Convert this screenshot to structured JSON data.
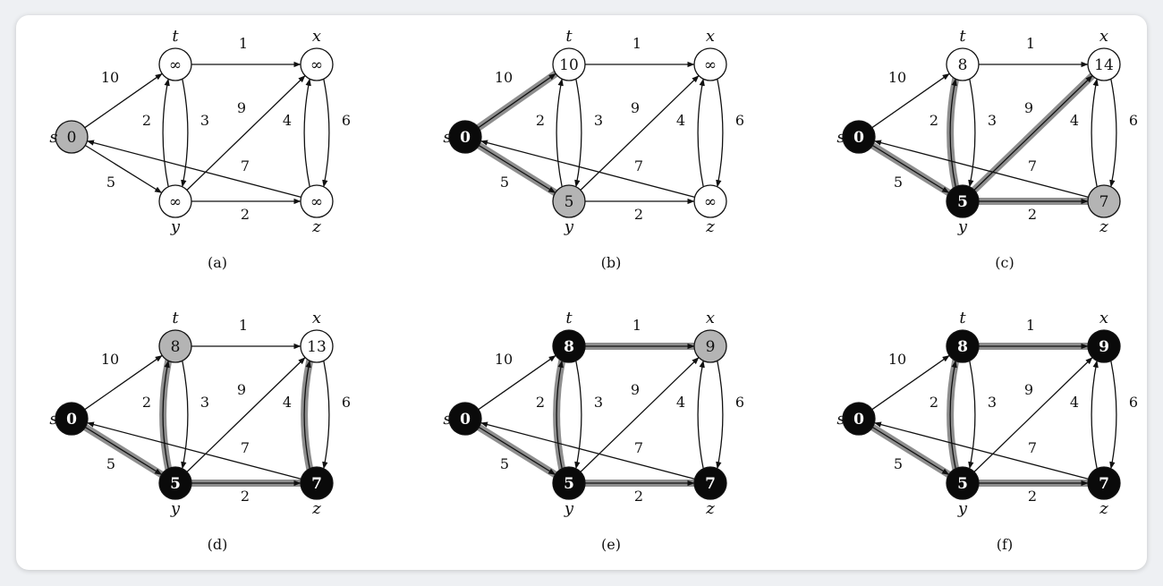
{
  "vertices": [
    {
      "id": "s",
      "name": "s"
    },
    {
      "id": "t",
      "name": "t"
    },
    {
      "id": "x",
      "name": "x"
    },
    {
      "id": "y",
      "name": "y"
    },
    {
      "id": "z",
      "name": "z"
    }
  ],
  "edges": [
    {
      "from": "s",
      "to": "t",
      "weight": "10"
    },
    {
      "from": "s",
      "to": "y",
      "weight": "5"
    },
    {
      "from": "t",
      "to": "x",
      "weight": "1"
    },
    {
      "from": "t",
      "to": "y",
      "weight": "2"
    },
    {
      "from": "y",
      "to": "t",
      "weight": "3"
    },
    {
      "from": "y",
      "to": "x",
      "weight": "9"
    },
    {
      "from": "y",
      "to": "z",
      "weight": "2"
    },
    {
      "from": "x",
      "to": "z",
      "weight": "4"
    },
    {
      "from": "z",
      "to": "x",
      "weight": "6"
    },
    {
      "from": "z",
      "to": "s",
      "weight": "7"
    }
  ],
  "panels": [
    {
      "caption": "(a)",
      "nodes": {
        "s": {
          "d": "0",
          "state": "gray"
        },
        "t": {
          "d": "∞",
          "state": "white"
        },
        "x": {
          "d": "∞",
          "state": "white"
        },
        "y": {
          "d": "∞",
          "state": "white"
        },
        "z": {
          "d": "∞",
          "state": "white"
        }
      },
      "shaded_edges": []
    },
    {
      "caption": "(b)",
      "nodes": {
        "s": {
          "d": "0",
          "state": "black"
        },
        "t": {
          "d": "10",
          "state": "white"
        },
        "x": {
          "d": "∞",
          "state": "white"
        },
        "y": {
          "d": "5",
          "state": "gray"
        },
        "z": {
          "d": "∞",
          "state": "white"
        }
      },
      "shaded_edges": [
        "s-t",
        "s-y"
      ]
    },
    {
      "caption": "(c)",
      "nodes": {
        "s": {
          "d": "0",
          "state": "black"
        },
        "t": {
          "d": "8",
          "state": "white"
        },
        "x": {
          "d": "14",
          "state": "white"
        },
        "y": {
          "d": "5",
          "state": "black"
        },
        "z": {
          "d": "7",
          "state": "gray"
        }
      },
      "shaded_edges": [
        "s-y",
        "y-t",
        "y-x",
        "y-z"
      ]
    },
    {
      "caption": "(d)",
      "nodes": {
        "s": {
          "d": "0",
          "state": "black"
        },
        "t": {
          "d": "8",
          "state": "gray"
        },
        "x": {
          "d": "13",
          "state": "white"
        },
        "y": {
          "d": "5",
          "state": "black"
        },
        "z": {
          "d": "7",
          "state": "black"
        }
      },
      "shaded_edges": [
        "s-y",
        "y-t",
        "y-z",
        "z-x"
      ]
    },
    {
      "caption": "(e)",
      "nodes": {
        "s": {
          "d": "0",
          "state": "black"
        },
        "t": {
          "d": "8",
          "state": "black"
        },
        "x": {
          "d": "9",
          "state": "gray"
        },
        "y": {
          "d": "5",
          "state": "black"
        },
        "z": {
          "d": "7",
          "state": "black"
        }
      },
      "shaded_edges": [
        "s-y",
        "y-t",
        "y-z",
        "t-x"
      ]
    },
    {
      "caption": "(f)",
      "nodes": {
        "s": {
          "d": "0",
          "state": "black"
        },
        "t": {
          "d": "8",
          "state": "black"
        },
        "x": {
          "d": "9",
          "state": "black"
        },
        "y": {
          "d": "5",
          "state": "black"
        },
        "z": {
          "d": "7",
          "state": "black"
        }
      },
      "shaded_edges": [
        "s-y",
        "y-t",
        "y-z",
        "t-x"
      ]
    }
  ],
  "colors": {
    "white_fill": "#ffffff",
    "gray_fill": "#b4b4b4",
    "black_fill": "#0a0a0a",
    "shade": "#7a7a7a",
    "edge": "#111111"
  }
}
